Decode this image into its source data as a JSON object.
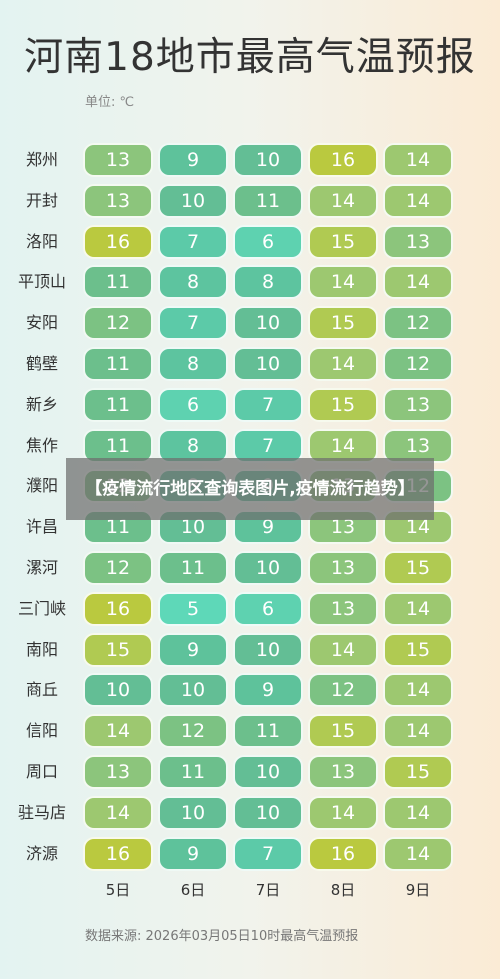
{
  "overlay_caption": "【疫情流行地区查询表图片,疫情流行趋势】",
  "chart_data": {
    "type": "heatmap",
    "title": "河南18地市最高气温预报",
    "unit_label": "单位: ℃",
    "source": "数据来源: 2026年03月05日10时最高气温预报",
    "columns": [
      "5日",
      "6日",
      "7日",
      "8日",
      "9日"
    ],
    "rows": [
      "郑州",
      "开封",
      "洛阳",
      "平顶山",
      "安阳",
      "鹤壁",
      "新乡",
      "焦作",
      "濮阳",
      "许昌",
      "漯河",
      "三门峡",
      "南阳",
      "商丘",
      "信阳",
      "周口",
      "驻马店",
      "济源"
    ],
    "values": [
      [
        13,
        9,
        10,
        16,
        14
      ],
      [
        13,
        10,
        11,
        14,
        14
      ],
      [
        16,
        7,
        6,
        15,
        13
      ],
      [
        11,
        8,
        8,
        14,
        14
      ],
      [
        12,
        7,
        10,
        15,
        12
      ],
      [
        11,
        8,
        10,
        14,
        12
      ],
      [
        11,
        6,
        7,
        15,
        13
      ],
      [
        11,
        8,
        7,
        14,
        13
      ],
      [
        12,
        8,
        9,
        13,
        12
      ],
      [
        11,
        10,
        9,
        13,
        14
      ],
      [
        12,
        11,
        10,
        13,
        15
      ],
      [
        16,
        5,
        6,
        13,
        14
      ],
      [
        15,
        9,
        10,
        14,
        15
      ],
      [
        10,
        10,
        9,
        12,
        14
      ],
      [
        14,
        12,
        11,
        15,
        14
      ],
      [
        13,
        11,
        10,
        13,
        15
      ],
      [
        14,
        10,
        10,
        14,
        14
      ],
      [
        16,
        9,
        7,
        16,
        14
      ]
    ],
    "color_scale": {
      "5": "#5ed8b8",
      "6": "#5ed2b0",
      "7": "#5ccaa8",
      "8": "#5dc49f",
      "9": "#5ec29b",
      "10": "#63be95",
      "11": "#6cbf8c",
      "12": "#7cc283",
      "13": "#8cc57c",
      "14": "#9dc870",
      "15": "#b0ca52",
      "16": "#bac93f"
    }
  }
}
